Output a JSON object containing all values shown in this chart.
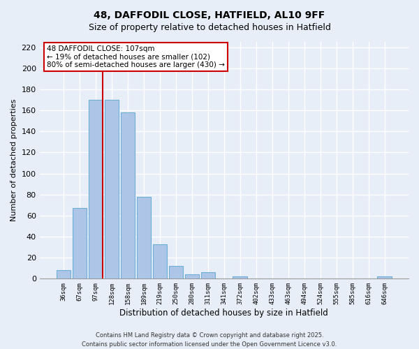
{
  "title": "48, DAFFODIL CLOSE, HATFIELD, AL10 9FF",
  "subtitle": "Size of property relative to detached houses in Hatfield",
  "xlabel": "Distribution of detached houses by size in Hatfield",
  "ylabel": "Number of detached properties",
  "bar_values": [
    8,
    67,
    170,
    170,
    158,
    78,
    33,
    12,
    4,
    6,
    0,
    2,
    0,
    0,
    0,
    0,
    0,
    0,
    0,
    0,
    2
  ],
  "bin_labels": [
    "36sqm",
    "67sqm",
    "97sqm",
    "128sqm",
    "158sqm",
    "189sqm",
    "219sqm",
    "250sqm",
    "280sqm",
    "311sqm",
    "341sqm",
    "372sqm",
    "402sqm",
    "433sqm",
    "463sqm",
    "494sqm",
    "524sqm",
    "555sqm",
    "585sqm",
    "616sqm",
    "646sqm"
  ],
  "bar_color": "#adc6e8",
  "bar_edge_color": "#6baed6",
  "ylim": [
    0,
    225
  ],
  "yticks": [
    0,
    20,
    40,
    60,
    80,
    100,
    120,
    140,
    160,
    180,
    200,
    220
  ],
  "property_line_color": "#cc0000",
  "annotation_text": "48 DAFFODIL CLOSE: 107sqm\n← 19% of detached houses are smaller (102)\n80% of semi-detached houses are larger (430) →",
  "annotation_box_color": "#ffffff",
  "annotation_box_edge": "#cc0000",
  "footer_line1": "Contains HM Land Registry data © Crown copyright and database right 2025.",
  "footer_line2": "Contains public sector information licensed under the Open Government Licence v3.0.",
  "bg_color": "#e8eef8",
  "grid_color": "#ffffff"
}
